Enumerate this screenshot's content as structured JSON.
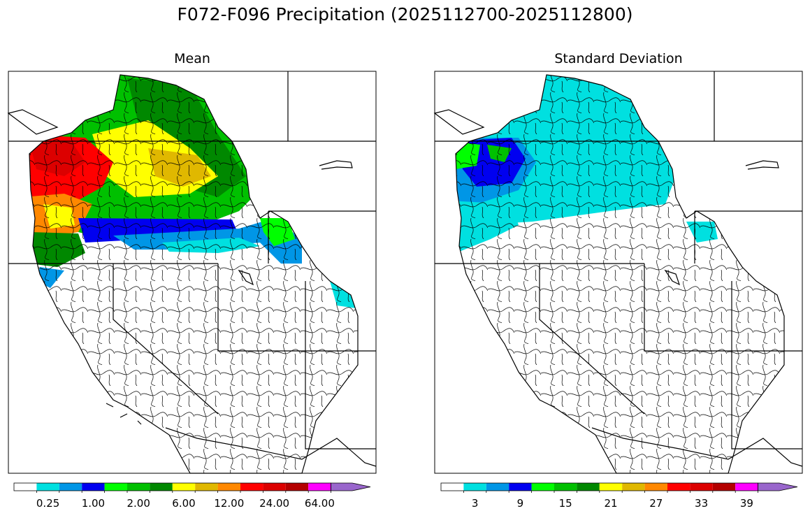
{
  "title": "F072-F096 Precipitation (2025112700-2025112800)",
  "panels": [
    {
      "id": "mean",
      "title": "Mean",
      "colorbar": {
        "colors": [
          "#ffffff",
          "#00e0e0",
          "#0096e6",
          "#0000f0",
          "#00ff00",
          "#00c000",
          "#008800",
          "#ffff00",
          "#e0b800",
          "#ff8800",
          "#ff0000",
          "#dc0000",
          "#b40000",
          "#ff00ff",
          "#9966cc"
        ],
        "tick_labels": [
          "0.25",
          "1.00",
          "2.00",
          "6.00",
          "12.00",
          "24.00",
          "64.00"
        ],
        "tick_bins": [
          1,
          3,
          5,
          7,
          9,
          11,
          13
        ],
        "extend": "max"
      }
    },
    {
      "id": "std",
      "title": "Standard Deviation",
      "colorbar": {
        "colors": [
          "#ffffff",
          "#00e0e0",
          "#0096e6",
          "#0000f0",
          "#00ff00",
          "#00c000",
          "#008800",
          "#ffff00",
          "#e0b800",
          "#ff8800",
          "#ff0000",
          "#dc0000",
          "#b40000",
          "#ff00ff",
          "#9966cc"
        ],
        "tick_labels": [
          "3",
          "9",
          "15",
          "21",
          "27",
          "33",
          "39"
        ],
        "tick_bins": [
          1,
          3,
          5,
          7,
          9,
          11,
          13
        ],
        "extend": "max"
      }
    }
  ]
}
